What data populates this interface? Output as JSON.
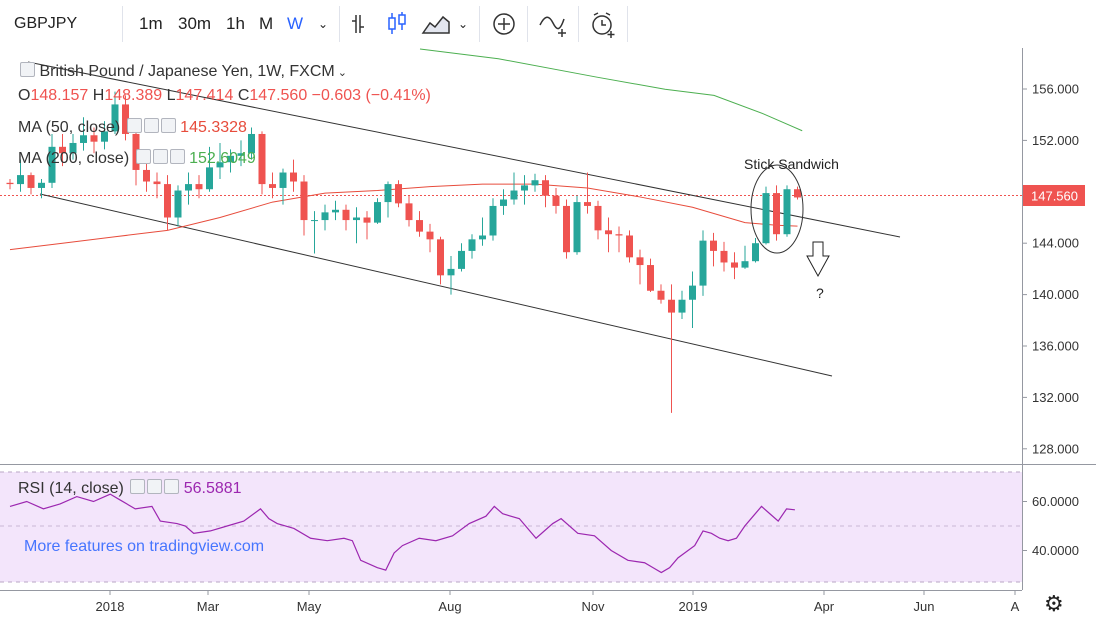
{
  "toolbar": {
    "symbol": "GBPJPY",
    "intervals": [
      "1m",
      "30m",
      "1h",
      "M",
      "W"
    ],
    "active_interval": "W",
    "icons": [
      "chevron-down-icon",
      "bars-icon",
      "candles-icon",
      "area-icon",
      "add-compare-icon",
      "indicators-icon",
      "alert-icon"
    ]
  },
  "legend": {
    "title": "British Pound / Japanese Yen, 1W, FXCM",
    "ohlc": {
      "o": "O",
      "o_val": "148.157",
      "h": "H",
      "h_val": "148.389",
      "l": "L",
      "l_val": "147.414",
      "c": "C",
      "c_val": "147.560",
      "chg": "−0.603 (−0.41%)"
    },
    "ma50_label": "MA (50, close)",
    "ma50_value": "145.3328",
    "ma200_label": "MA (200, close)",
    "ma200_value": "152.6049",
    "rsi_label": "RSI (14, close)",
    "rsi_value": "56.5881"
  },
  "watermark": "More features on tradingview.com",
  "annotation": {
    "label": "Stick Sandwich",
    "question": "?"
  },
  "colors": {
    "up": "#26a69a",
    "down": "#ef5350",
    "ma50": "#e74c3c",
    "ma200": "#4caf50",
    "rsi": "#9c27b0",
    "rsi_bg": "#f3e5fb",
    "price_tag": "#ef5350",
    "link": "#2962ff"
  },
  "chart_data": {
    "type": "candlestick",
    "price_axis": {
      "ticks": [
        "156.000",
        "152.000",
        "148.000",
        "144.000",
        "140.000",
        "136.000",
        "132.000",
        "128.000"
      ],
      "range": [
        124.8,
        159.4
      ],
      "last_price": "147.560"
    },
    "rsi_axis": {
      "ticks": [
        "60.0000",
        "40.0000"
      ],
      "range": [
        30,
        70
      ]
    },
    "time_axis": {
      "ticks": [
        "2018",
        "Mar",
        "May",
        "Aug",
        "Nov",
        "2019",
        "Apr",
        "Jun",
        "A"
      ]
    },
    "candles": [
      [
        148.7,
        149.0,
        148.2,
        148.6
      ],
      [
        148.6,
        150.5,
        148.0,
        149.3
      ],
      [
        149.3,
        149.5,
        147.8,
        148.3
      ],
      [
        148.3,
        149.0,
        147.5,
        148.7
      ],
      [
        148.7,
        152.5,
        148.3,
        151.5
      ],
      [
        151.5,
        152.5,
        150.0,
        151.0
      ],
      [
        151.0,
        152.5,
        150.5,
        151.8
      ],
      [
        151.8,
        153.8,
        151.2,
        152.4
      ],
      [
        152.4,
        153.0,
        151.0,
        151.9
      ],
      [
        151.9,
        153.5,
        151.3,
        152.7
      ],
      [
        152.7,
        155.8,
        152.5,
        154.8
      ],
      [
        154.8,
        155.5,
        152.0,
        152.5
      ],
      [
        152.5,
        153.0,
        148.5,
        149.7
      ],
      [
        149.7,
        150.3,
        148.0,
        148.8
      ],
      [
        148.8,
        149.5,
        147.5,
        148.6
      ],
      [
        148.6,
        149.3,
        145.0,
        146.0
      ],
      [
        146.0,
        148.5,
        145.3,
        148.1
      ],
      [
        148.1,
        149.5,
        147.0,
        148.6
      ],
      [
        148.6,
        149.3,
        147.5,
        148.2
      ],
      [
        148.2,
        151.5,
        148.0,
        149.9
      ],
      [
        149.9,
        151.8,
        149.0,
        150.3
      ],
      [
        150.3,
        151.3,
        149.5,
        150.8
      ],
      [
        150.8,
        152.0,
        150.0,
        151.0
      ],
      [
        151.0,
        153.0,
        150.5,
        152.5
      ],
      [
        152.5,
        152.7,
        147.8,
        148.6
      ],
      [
        148.6,
        149.5,
        147.5,
        148.3
      ],
      [
        148.3,
        149.8,
        147.0,
        149.5
      ],
      [
        149.5,
        150.5,
        148.0,
        148.8
      ],
      [
        148.8,
        149.3,
        144.6,
        145.8
      ],
      [
        145.8,
        146.5,
        143.2,
        145.8
      ],
      [
        145.8,
        147.0,
        145.0,
        146.4
      ],
      [
        146.4,
        147.3,
        145.8,
        146.6
      ],
      [
        146.6,
        147.0,
        145.0,
        145.8
      ],
      [
        145.8,
        146.8,
        144.0,
        146.0
      ],
      [
        146.0,
        146.5,
        144.3,
        145.6
      ],
      [
        145.6,
        147.5,
        145.5,
        147.2
      ],
      [
        147.2,
        148.8,
        146.0,
        148.6
      ],
      [
        148.6,
        148.9,
        146.8,
        147.1
      ],
      [
        147.1,
        147.7,
        145.3,
        145.8
      ],
      [
        145.8,
        146.5,
        144.5,
        144.9
      ],
      [
        144.9,
        145.5,
        143.3,
        144.3
      ],
      [
        144.3,
        144.5,
        140.8,
        141.5
      ],
      [
        141.5,
        143.0,
        140.0,
        142.0
      ],
      [
        142.0,
        144.0,
        141.8,
        143.4
      ],
      [
        143.4,
        144.7,
        142.8,
        144.3
      ],
      [
        144.3,
        146.0,
        143.8,
        144.6
      ],
      [
        144.6,
        147.5,
        144.2,
        146.9
      ],
      [
        146.9,
        148.2,
        146.2,
        147.4
      ],
      [
        147.4,
        149.5,
        147.0,
        148.1
      ],
      [
        148.1,
        149.3,
        147.0,
        148.5
      ],
      [
        148.5,
        149.4,
        148.0,
        148.9
      ],
      [
        148.9,
        149.3,
        146.8,
        147.7
      ],
      [
        147.7,
        148.3,
        146.3,
        146.9
      ],
      [
        146.9,
        147.4,
        142.8,
        143.3
      ],
      [
        143.3,
        147.7,
        143.1,
        147.2
      ],
      [
        147.2,
        149.5,
        146.3,
        146.9
      ],
      [
        146.9,
        147.3,
        144.3,
        145.0
      ],
      [
        145.0,
        146.0,
        143.3,
        144.7
      ],
      [
        144.7,
        145.3,
        143.3,
        144.6
      ],
      [
        144.6,
        145.0,
        142.5,
        142.9
      ],
      [
        142.9,
        143.5,
        140.8,
        142.3
      ],
      [
        142.3,
        142.8,
        140.2,
        140.3
      ],
      [
        140.3,
        140.8,
        139.3,
        139.6
      ],
      [
        139.6,
        140.8,
        130.8,
        138.6
      ],
      [
        138.6,
        140.3,
        138.1,
        139.6
      ],
      [
        139.6,
        141.8,
        137.4,
        140.7
      ],
      [
        140.7,
        145.0,
        139.9,
        144.2
      ],
      [
        144.2,
        144.8,
        142.2,
        143.4
      ],
      [
        143.4,
        144.1,
        141.8,
        142.5
      ],
      [
        142.5,
        143.3,
        141.2,
        142.1
      ],
      [
        142.1,
        143.8,
        142.0,
        142.6
      ],
      [
        142.6,
        144.4,
        142.5,
        144.0
      ],
      [
        144.0,
        148.4,
        143.9,
        147.9
      ],
      [
        147.9,
        148.5,
        144.2,
        144.7
      ],
      [
        144.7,
        148.5,
        144.5,
        148.2
      ],
      [
        148.2,
        148.4,
        147.4,
        147.56
      ]
    ],
    "ma50": [
      [
        0,
        143.5
      ],
      [
        5,
        144.0
      ],
      [
        10,
        144.5
      ],
      [
        15,
        145.0
      ],
      [
        20,
        146.0
      ],
      [
        25,
        147.2
      ],
      [
        30,
        147.9
      ],
      [
        35,
        148.1
      ],
      [
        40,
        148.4
      ],
      [
        45,
        148.6
      ],
      [
        50,
        148.6
      ],
      [
        55,
        148.3
      ],
      [
        60,
        147.6
      ],
      [
        65,
        146.8
      ],
      [
        70,
        145.6
      ],
      [
        73,
        145.4
      ],
      [
        75,
        145.33
      ]
    ],
    "ma200": [
      [
        37,
        159.3
      ],
      [
        45,
        158.5
      ],
      [
        55,
        157.0
      ],
      [
        62,
        156.0
      ],
      [
        67,
        155.5
      ],
      [
        72,
        154.0
      ],
      [
        76,
        152.6
      ]
    ],
    "rsi": [
      [
        0,
        58
      ],
      [
        2,
        60
      ],
      [
        4,
        57
      ],
      [
        6,
        59
      ],
      [
        8,
        62
      ],
      [
        10,
        60
      ],
      [
        12,
        63
      ],
      [
        13,
        61
      ],
      [
        15,
        57
      ],
      [
        17,
        58
      ],
      [
        18,
        52
      ],
      [
        20,
        51
      ],
      [
        21,
        50
      ],
      [
        22,
        47
      ],
      [
        24,
        48
      ],
      [
        26,
        50
      ],
      [
        28,
        52
      ],
      [
        30,
        57
      ],
      [
        31,
        53
      ],
      [
        32,
        51
      ],
      [
        34,
        49
      ],
      [
        36,
        45
      ],
      [
        38,
        44
      ],
      [
        40,
        45
      ],
      [
        41,
        44
      ],
      [
        42,
        36
      ],
      [
        44,
        33
      ],
      [
        45,
        32
      ],
      [
        46,
        39
      ],
      [
        47,
        42
      ],
      [
        49,
        45
      ],
      [
        51,
        44
      ],
      [
        53,
        46
      ],
      [
        55,
        51
      ],
      [
        57,
        54
      ],
      [
        58,
        58
      ],
      [
        59,
        55
      ],
      [
        61,
        53
      ],
      [
        63,
        45
      ],
      [
        65,
        51
      ],
      [
        66,
        53
      ],
      [
        68,
        47
      ],
      [
        70,
        46
      ],
      [
        72,
        40
      ],
      [
        74,
        36
      ],
      [
        76,
        35
      ],
      [
        77,
        33
      ],
      [
        78,
        31
      ],
      [
        79,
        33
      ],
      [
        80,
        37
      ],
      [
        82,
        42
      ],
      [
        83,
        48
      ],
      [
        84,
        47
      ],
      [
        85,
        45
      ],
      [
        86,
        44
      ],
      [
        87,
        45
      ],
      [
        88,
        50
      ],
      [
        89,
        54
      ],
      [
        90,
        58
      ],
      [
        91,
        55
      ],
      [
        92,
        52
      ],
      [
        93,
        57
      ],
      [
        94,
        56.6
      ]
    ]
  }
}
